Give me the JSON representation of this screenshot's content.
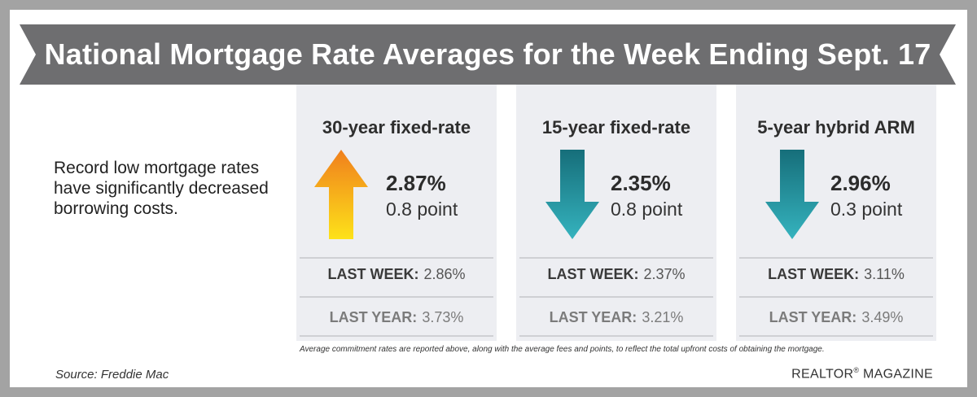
{
  "banner": {
    "title": "National Mortgage Rate Averages for the Week Ending Sept. 17"
  },
  "intro": {
    "text": "Record low mortgage rates have significantly decreased borrowing costs."
  },
  "cards": [
    {
      "title": "30-year fixed-rate",
      "direction": "up",
      "rate": "2.87%",
      "change": "0.8 point",
      "last_week_label": "LAST WEEK:",
      "last_week_value": "2.86%",
      "last_year_label": "LAST YEAR:",
      "last_year_value": "3.73%"
    },
    {
      "title": "15-year fixed-rate",
      "direction": "down",
      "rate": "2.35%",
      "change": "0.8 point",
      "last_week_label": "LAST WEEK:",
      "last_week_value": "2.37%",
      "last_year_label": "LAST YEAR:",
      "last_year_value": "3.21%"
    },
    {
      "title": "5-year hybrid ARM",
      "direction": "down",
      "rate": "2.96%",
      "change": "0.3 point",
      "last_week_label": "LAST WEEK:",
      "last_week_value": "3.11%",
      "last_year_label": "LAST YEAR:",
      "last_year_value": "3.49%"
    }
  ],
  "footnote": "Average commitment rates are reported above, along with the average fees and points, to reflect the total upfront costs of obtaining the mortgage.",
  "source": "Source: Freddie Mac",
  "brand": {
    "name": "REALTOR",
    "mark": "®",
    "suffix": " MAGAZINE"
  },
  "colors": {
    "banner": "#6e6e70",
    "card_bg": "#edeef2",
    "up_arrow_top": "#f07f1c",
    "up_arrow_bottom": "#fde21a",
    "down_arrow_top": "#166e7a",
    "down_arrow_bottom": "#35b3be"
  }
}
